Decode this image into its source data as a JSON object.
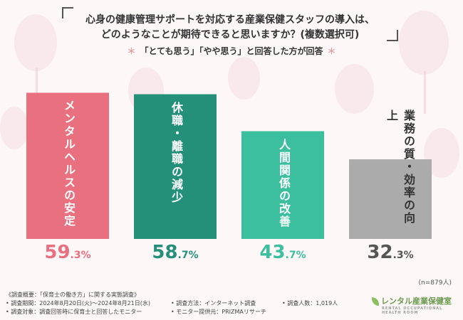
{
  "title": {
    "line1": "心身の健康管理サポートを対応する産業保健スタッフの導入は、",
    "line2": "どのようなことが期待できると思いますか？(複数選択可)"
  },
  "note": "「とても思う」「やや思う」と回答した方が回答",
  "chart_data": {
    "type": "bar",
    "categories": [
      "メンタルヘルスの安定",
      "休職・離職の減少",
      "人間関係の改善",
      "業務の質・効率の向上"
    ],
    "values": [
      59.3,
      58.7,
      43.7,
      32.3
    ],
    "value_labels": [
      {
        "main": "59",
        "decimal": ".3%"
      },
      {
        "main": "58",
        "decimal": ".7%"
      },
      {
        "main": "43",
        "decimal": ".7%"
      },
      {
        "main": "32",
        "decimal": ".3%"
      }
    ],
    "unit": "%",
    "colors": [
      "#e9707f",
      "#25907a",
      "#3bbf9f",
      "#ababab"
    ],
    "label_colors": [
      "#ffffff",
      "#ffffff",
      "#ffffff",
      "#333333"
    ],
    "pct_colors": [
      "#e9707f",
      "#25907a",
      "#3bbf9f",
      "#555555"
    ],
    "ylim": [
      0,
      60
    ],
    "grid": false
  },
  "n_count": "(n=879人)",
  "footer": {
    "overview": "《調査概要：「保育士の働き方」に関する実態調査》",
    "period": "• 調査期間：2024年8月20日(火)～2024年8月21日(水)",
    "method": "• 調査方法：インターネット調査",
    "respondents": "• 調査人数：1,019人",
    "target": "• 調査対象：調査回答時に保育士と回答したモニター",
    "provider": "• モニター提供元：PRIZMAリサーチ"
  },
  "logo": {
    "name": "レンタル産業保健室",
    "sub": "RENTAL OCCUPATIONAL HEALTH ROOM"
  }
}
